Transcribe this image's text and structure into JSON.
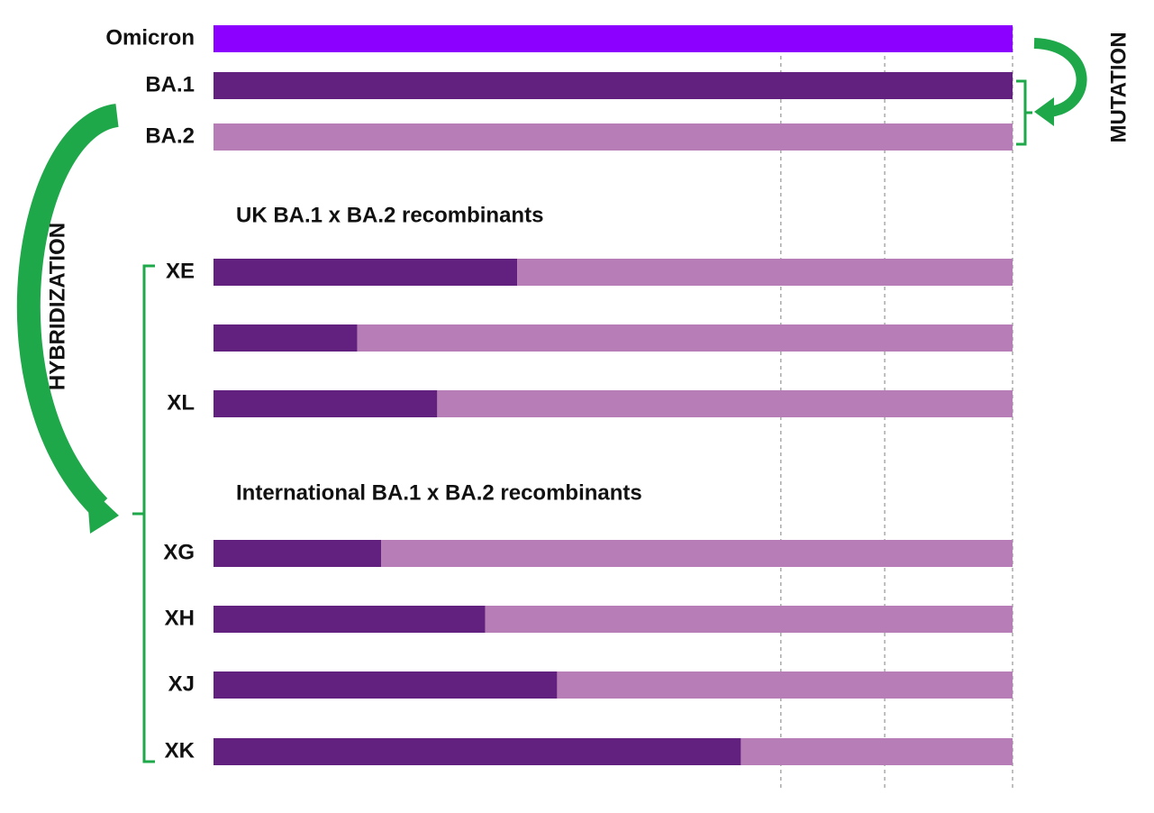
{
  "xlim": [
    0,
    100
  ],
  "xgrid": [
    71,
    84,
    100
  ],
  "parents": [
    {
      "label": "Omicron",
      "color": "#8b00ff",
      "share": 100
    },
    {
      "label": "BA.1",
      "color": "#62207f",
      "share": 100
    },
    {
      "label": "BA.2",
      "color": "#b77db6",
      "share": 100
    }
  ],
  "groups": [
    {
      "title": "UK BA.1 x BA.2 recombinants",
      "rows": [
        {
          "label": "XE",
          "ba1": 38,
          "ba2": 62
        },
        {
          "ba1": 18,
          "ba2": 82
        },
        {
          "label": "XL",
          "ba1": 28,
          "ba2": 72
        }
      ]
    },
    {
      "title": "International BA.1 x BA.2 recombinants",
      "rows": [
        {
          "label": "XG",
          "ba1": 21,
          "ba2": 79
        },
        {
          "label": "XH",
          "ba1": 34,
          "ba2": 66
        },
        {
          "label": "XJ",
          "ba1": 43,
          "ba2": 57
        },
        {
          "label": "XK",
          "ba1": 66,
          "ba2": 34
        }
      ]
    }
  ],
  "annotations": {
    "mutation": "MUTATION",
    "hybridization": "HYBRIDIZATION"
  }
}
